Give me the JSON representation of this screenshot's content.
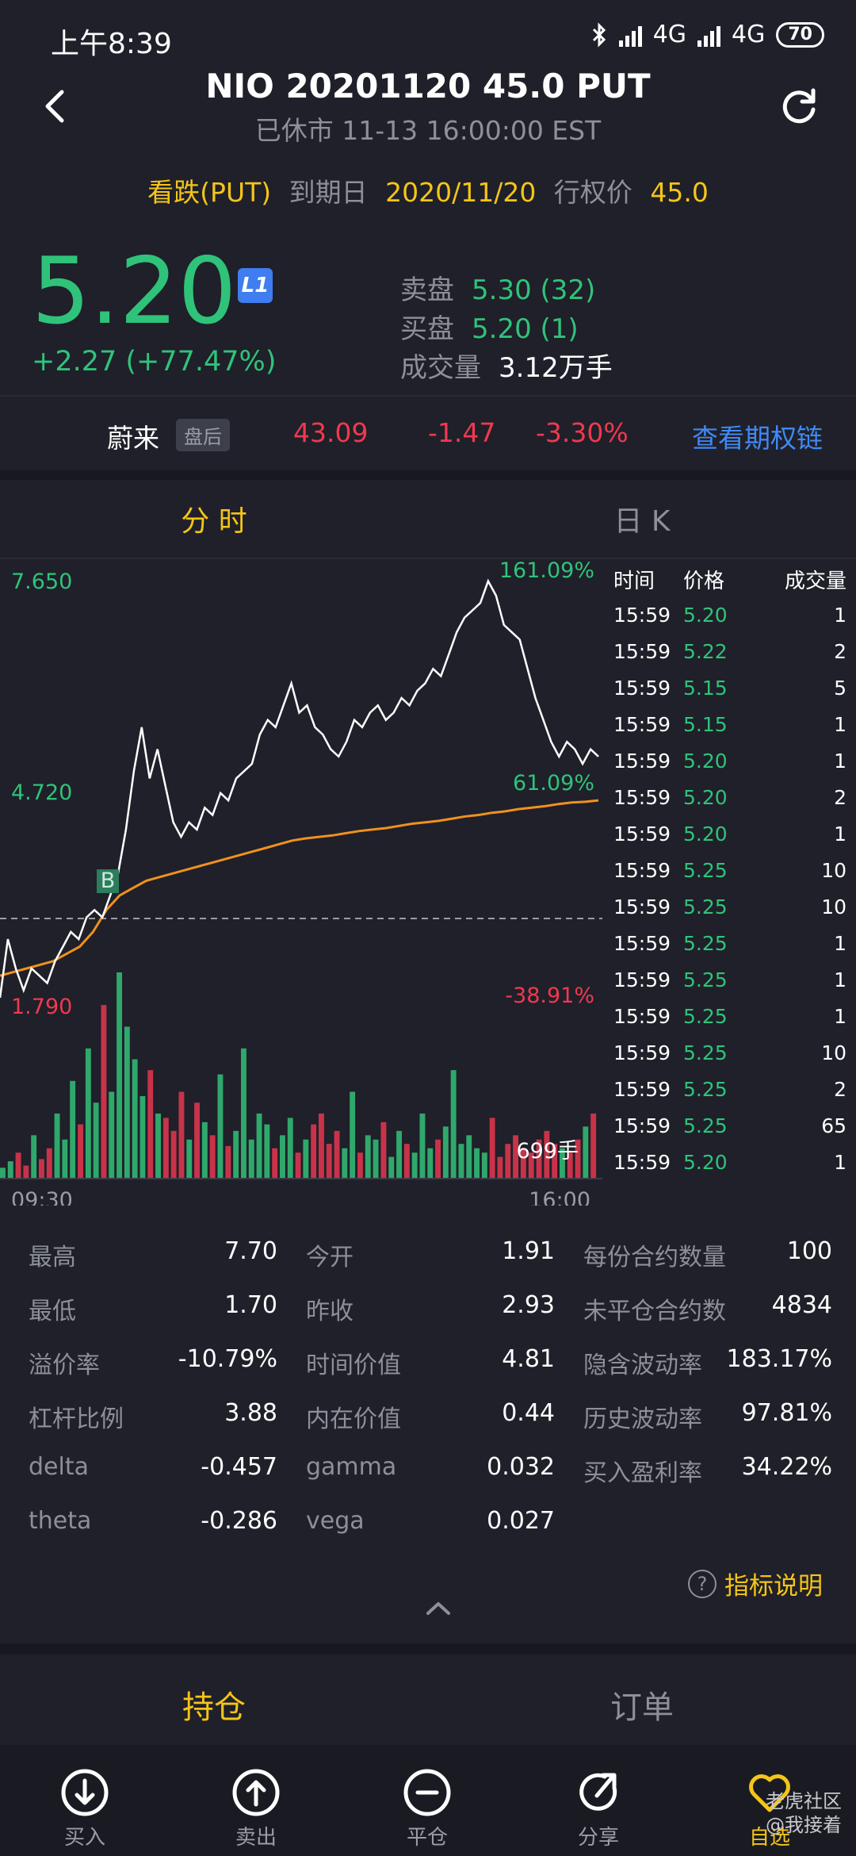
{
  "status_bar": {
    "time": "上午8:39",
    "network_1": "4G",
    "network_2": "4G",
    "battery": "70"
  },
  "header": {
    "title": "NIO 20201120 45.0 PUT",
    "subtitle": "已休市 11-13 16:00:00 EST"
  },
  "contract": {
    "type_label": "看跌(PUT)",
    "expiry_label": "到期日",
    "expiry_value": "2020/11/20",
    "strike_label": "行权价",
    "strike_value": "45.0"
  },
  "quote": {
    "last_price": "5.20",
    "level_badge": "L1",
    "change": "+2.27 (+77.47%)",
    "ask_label": "卖盘",
    "ask_value": "5.30 (32)",
    "bid_label": "买盘",
    "bid_value": "5.20 (1)",
    "volume_label": "成交量",
    "volume_value": "3.12万手"
  },
  "underlying": {
    "name": "蔚来",
    "session_badge": "盘后",
    "price": "43.09",
    "change": "-1.47",
    "change_pct": "-3.30%",
    "option_chain_link": "查看期权链"
  },
  "chart_tabs": {
    "intraday": "分 时",
    "daily": "日 K"
  },
  "chart_data": {
    "type": "line",
    "y_high_label": "7.650",
    "y_mid_label": "4.720",
    "y_low_label": "1.790",
    "pct_high_label": "161.09%",
    "pct_mid_label": "61.09%",
    "pct_low_label": "-38.91%",
    "x_start_label": "09:30",
    "x_end_label": "16:00",
    "buy_marker": "B",
    "volume_label": "699手",
    "ylim": [
      1.79,
      7.65
    ],
    "prev_close": 2.93,
    "series": [
      {
        "values": [
          1.9,
          2.7,
          2.3,
          2.0,
          2.3,
          2.2,
          2.1,
          2.4,
          2.6,
          2.8,
          2.7,
          3.0,
          3.1,
          3.0,
          3.3,
          3.6,
          4.2,
          5.0,
          5.6,
          4.9,
          5.3,
          4.8,
          4.3,
          4.1,
          4.3,
          4.2,
          4.5,
          4.4,
          4.7,
          4.6,
          4.9,
          5.0,
          5.1,
          5.5,
          5.7,
          5.6,
          5.9,
          6.2,
          5.8,
          5.9,
          5.6,
          5.5,
          5.3,
          5.2,
          5.4,
          5.7,
          5.6,
          5.8,
          5.9,
          5.7,
          5.8,
          6.0,
          5.9,
          6.1,
          6.2,
          6.4,
          6.3,
          6.6,
          6.9,
          7.1,
          7.2,
          7.3,
          7.6,
          7.4,
          7.0,
          6.9,
          6.8,
          6.4,
          6.0,
          5.7,
          5.4,
          5.2,
          5.4,
          5.3,
          5.1,
          5.3,
          5.2
        ]
      },
      {
        "values": [
          2.2,
          2.25,
          2.3,
          2.35,
          2.4,
          2.5,
          2.6,
          2.8,
          3.1,
          3.3,
          3.4,
          3.5,
          3.55,
          3.6,
          3.65,
          3.7,
          3.75,
          3.8,
          3.85,
          3.9,
          3.95,
          4.0,
          4.05,
          4.08,
          4.1,
          4.12,
          4.15,
          4.18,
          4.2,
          4.22,
          4.25,
          4.28,
          4.3,
          4.32,
          4.35,
          4.38,
          4.4,
          4.43,
          4.45,
          4.48,
          4.5,
          4.52,
          4.55,
          4.57,
          4.58,
          4.6
        ]
      }
    ],
    "volume": [
      5,
      8,
      12,
      6,
      20,
      9,
      14,
      30,
      18,
      45,
      25,
      60,
      35,
      80,
      40,
      95,
      70,
      55,
      38,
      50,
      30,
      28,
      22,
      40,
      18,
      35,
      26,
      20,
      48,
      15,
      22,
      60,
      18,
      30,
      25,
      14,
      20,
      28,
      12,
      18,
      25,
      30,
      16,
      22,
      14,
      40,
      12,
      20,
      18,
      26,
      10,
      22,
      16,
      12,
      30,
      14,
      18,
      24,
      50,
      16,
      20,
      14,
      12,
      28,
      10,
      16,
      20,
      14,
      12,
      18,
      22,
      16,
      14,
      12,
      18,
      24,
      30
    ]
  },
  "trades": {
    "headers": [
      "时间",
      "价格",
      "成交量"
    ],
    "rows": [
      {
        "time": "15:59",
        "price": "5.20",
        "vol": "1"
      },
      {
        "time": "15:59",
        "price": "5.22",
        "vol": "2"
      },
      {
        "time": "15:59",
        "price": "5.15",
        "vol": "5"
      },
      {
        "time": "15:59",
        "price": "5.15",
        "vol": "1"
      },
      {
        "time": "15:59",
        "price": "5.20",
        "vol": "1"
      },
      {
        "time": "15:59",
        "price": "5.20",
        "vol": "2"
      },
      {
        "time": "15:59",
        "price": "5.20",
        "vol": "1"
      },
      {
        "time": "15:59",
        "price": "5.25",
        "vol": "10"
      },
      {
        "time": "15:59",
        "price": "5.25",
        "vol": "10"
      },
      {
        "time": "15:59",
        "price": "5.25",
        "vol": "1"
      },
      {
        "time": "15:59",
        "price": "5.25",
        "vol": "1"
      },
      {
        "time": "15:59",
        "price": "5.25",
        "vol": "1"
      },
      {
        "time": "15:59",
        "price": "5.25",
        "vol": "10"
      },
      {
        "time": "15:59",
        "price": "5.25",
        "vol": "2"
      },
      {
        "time": "15:59",
        "price": "5.25",
        "vol": "65"
      },
      {
        "time": "15:59",
        "price": "5.20",
        "vol": "1"
      }
    ]
  },
  "stats": [
    {
      "label": "最高",
      "value": "7.70"
    },
    {
      "label": "今开",
      "value": "1.91"
    },
    {
      "label": "每份合约数量",
      "value": "100"
    },
    {
      "label": "最低",
      "value": "1.70"
    },
    {
      "label": "昨收",
      "value": "2.93"
    },
    {
      "label": "未平仓合约数",
      "value": "4834"
    },
    {
      "label": "溢价率",
      "value": "-10.79%"
    },
    {
      "label": "时间价值",
      "value": "4.81"
    },
    {
      "label": "隐含波动率",
      "value": "183.17%"
    },
    {
      "label": "杠杆比例",
      "value": "3.88"
    },
    {
      "label": "内在价值",
      "value": "0.44"
    },
    {
      "label": "历史波动率",
      "value": "97.81%"
    },
    {
      "label": "delta",
      "value": "-0.457"
    },
    {
      "label": "gamma",
      "value": "0.032"
    },
    {
      "label": "买入盈利率",
      "value": "34.22%"
    },
    {
      "label": "theta",
      "value": "-0.286"
    },
    {
      "label": "vega",
      "value": "0.027"
    }
  ],
  "indicator_help": "指标说明",
  "bottom_tabs": {
    "positions": "持仓",
    "orders": "订单"
  },
  "toolbar": {
    "buy": "买入",
    "sell": "卖出",
    "close": "平仓",
    "share": "分享",
    "watchlist": "自选"
  },
  "watermark": {
    "line1": "老虎社区",
    "line2": "@我接着"
  }
}
